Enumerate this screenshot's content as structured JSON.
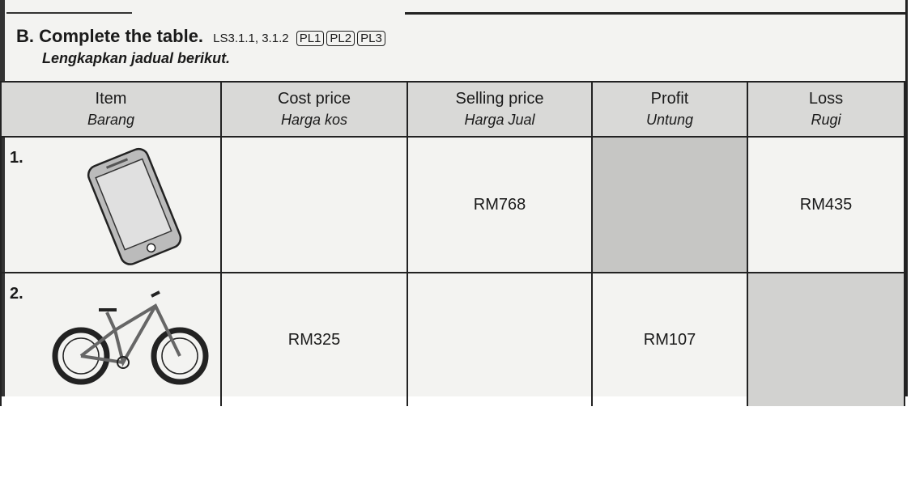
{
  "heading": {
    "label": "B.",
    "title": "Complete the table.",
    "codes": "LS3.1.1, 3.1.2",
    "levels": [
      "PL1",
      "PL2",
      "PL3"
    ],
    "subtitle": "Lengkapkan jadual berikut."
  },
  "table": {
    "headers": [
      {
        "en": "Item",
        "ms": "Barang"
      },
      {
        "en": "Cost price",
        "ms": "Harga kos"
      },
      {
        "en": "Selling price",
        "ms": "Harga Jual"
      },
      {
        "en": "Profit",
        "ms": "Untung"
      },
      {
        "en": "Loss",
        "ms": "Rugi"
      }
    ],
    "rows": [
      {
        "number": "1.",
        "item_icon": "smartphone-icon",
        "cost": "",
        "selling": "RM768",
        "profit": "",
        "loss": "RM435",
        "shaded": "profit"
      },
      {
        "number": "2.",
        "item_icon": "bicycle-icon",
        "cost": "RM325",
        "selling": "",
        "profit": "RM107",
        "loss": "",
        "shaded": "loss"
      }
    ]
  }
}
